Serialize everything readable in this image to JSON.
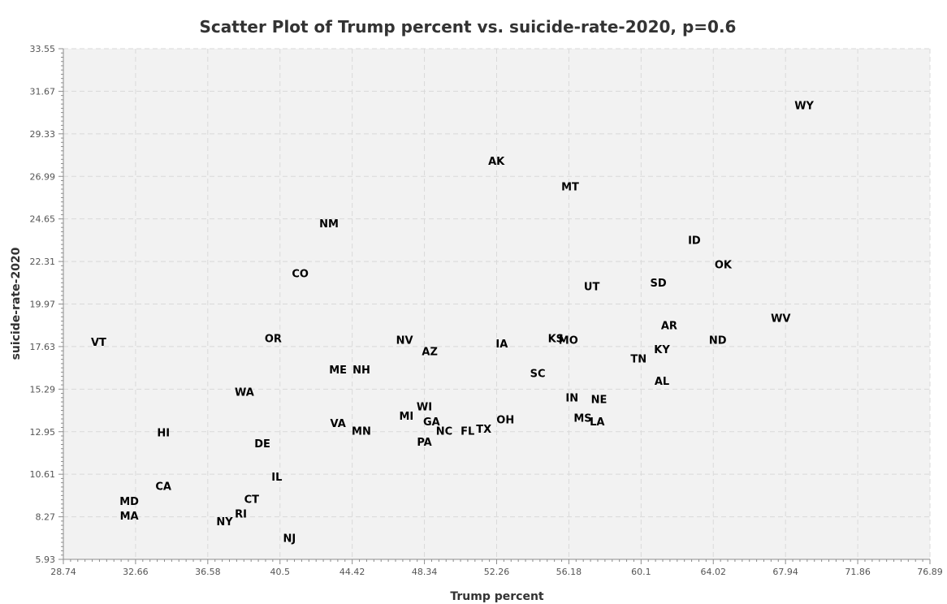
{
  "chart_data": {
    "type": "scatter",
    "title": "Scatter Plot of Trump percent vs. suicide-rate-2020, p=0.6",
    "xlabel": "Trump percent",
    "ylabel": "suicide-rate-2020",
    "xlim": [
      28.74,
      76.89
    ],
    "ylim": [
      5.93,
      33.55
    ],
    "x_ticks": [
      "28.74",
      "32.66",
      "36.58",
      "40.5",
      "44.42",
      "48.34",
      "52.26",
      "56.18",
      "60.1",
      "64.02",
      "67.94",
      "71.86",
      "76.89"
    ],
    "y_ticks": [
      "5.93",
      "8.27",
      "10.61",
      "12.95",
      "15.29",
      "17.63",
      "19.97",
      "22.31",
      "24.65",
      "26.99",
      "29.33",
      "31.67",
      "33.55"
    ],
    "grid": true,
    "points": [
      {
        "label": "WY",
        "x": 69.9,
        "y": 30.5
      },
      {
        "label": "AK",
        "x": 52.8,
        "y": 27.5
      },
      {
        "label": "MT",
        "x": 56.9,
        "y": 26.1
      },
      {
        "label": "NM",
        "x": 43.5,
        "y": 24.1
      },
      {
        "label": "ID",
        "x": 63.8,
        "y": 23.2
      },
      {
        "label": "OK",
        "x": 65.4,
        "y": 21.9
      },
      {
        "label": "CO",
        "x": 41.9,
        "y": 21.4
      },
      {
        "label": "SD",
        "x": 61.8,
        "y": 20.9
      },
      {
        "label": "UT",
        "x": 58.1,
        "y": 20.7
      },
      {
        "label": "WV",
        "x": 68.6,
        "y": 19.0
      },
      {
        "label": "AR",
        "x": 62.4,
        "y": 18.6
      },
      {
        "label": "KS",
        "x": 56.1,
        "y": 17.9
      },
      {
        "label": "MO",
        "x": 56.8,
        "y": 17.8
      },
      {
        "label": "ND",
        "x": 65.1,
        "y": 17.8
      },
      {
        "label": "VT",
        "x": 30.7,
        "y": 17.7
      },
      {
        "label": "OR",
        "x": 40.4,
        "y": 17.9
      },
      {
        "label": "NV",
        "x": 47.7,
        "y": 17.8
      },
      {
        "label": "IA",
        "x": 53.1,
        "y": 17.6
      },
      {
        "label": "AZ",
        "x": 49.1,
        "y": 17.2
      },
      {
        "label": "KY",
        "x": 62.0,
        "y": 17.3
      },
      {
        "label": "TN",
        "x": 60.7,
        "y": 16.8
      },
      {
        "label": "ME",
        "x": 44.0,
        "y": 16.2
      },
      {
        "label": "NH",
        "x": 45.3,
        "y": 16.2
      },
      {
        "label": "SC",
        "x": 55.1,
        "y": 16.0
      },
      {
        "label": "AL",
        "x": 62.0,
        "y": 15.6
      },
      {
        "label": "WA",
        "x": 38.8,
        "y": 15.0
      },
      {
        "label": "IN",
        "x": 57.0,
        "y": 14.7
      },
      {
        "label": "NE",
        "x": 58.5,
        "y": 14.6
      },
      {
        "label": "WI",
        "x": 48.8,
        "y": 14.2
      },
      {
        "label": "MI",
        "x": 47.8,
        "y": 13.7
      },
      {
        "label": "MS",
        "x": 57.6,
        "y": 13.6
      },
      {
        "label": "GA",
        "x": 49.2,
        "y": 13.4
      },
      {
        "label": "OH",
        "x": 53.3,
        "y": 13.5
      },
      {
        "label": "LA",
        "x": 58.4,
        "y": 13.4
      },
      {
        "label": "VA",
        "x": 44.0,
        "y": 13.3
      },
      {
        "label": "NC",
        "x": 49.9,
        "y": 12.9
      },
      {
        "label": "FL",
        "x": 51.2,
        "y": 12.9
      },
      {
        "label": "TX",
        "x": 52.1,
        "y": 13.0
      },
      {
        "label": "MN",
        "x": 45.3,
        "y": 12.9
      },
      {
        "label": "HI",
        "x": 34.3,
        "y": 12.8
      },
      {
        "label": "PA",
        "x": 48.8,
        "y": 12.3
      },
      {
        "label": "DE",
        "x": 39.8,
        "y": 12.2
      },
      {
        "label": "IL",
        "x": 40.6,
        "y": 10.4
      },
      {
        "label": "CA",
        "x": 34.3,
        "y": 9.9
      },
      {
        "label": "MD",
        "x": 32.4,
        "y": 9.1
      },
      {
        "label": "CT",
        "x": 39.2,
        "y": 9.2
      },
      {
        "label": "RI",
        "x": 38.6,
        "y": 8.4
      },
      {
        "label": "MA",
        "x": 32.4,
        "y": 8.3
      },
      {
        "label": "NY",
        "x": 37.7,
        "y": 8.0
      },
      {
        "label": "NJ",
        "x": 41.3,
        "y": 7.1
      }
    ]
  }
}
